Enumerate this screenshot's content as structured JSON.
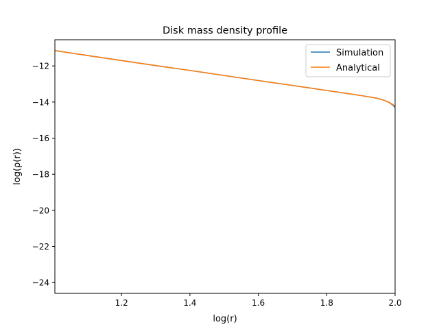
{
  "chart_data": {
    "type": "line",
    "title": "Disk mass density profile",
    "xlabel": "log(r)",
    "ylabel": "log(ρ(r))",
    "xlim": [
      1.005,
      2.0
    ],
    "ylim": [
      -24.6,
      -10.55
    ],
    "xticks": [
      1.2,
      1.4,
      1.6,
      1.8,
      2.0
    ],
    "xtick_labels": [
      "1.2",
      "1.4",
      "1.6",
      "1.8",
      "2.0"
    ],
    "yticks": [
      -12,
      -14,
      -16,
      -18,
      -20,
      -22,
      -24
    ],
    "ytick_labels": [
      "−12",
      "−14",
      "−16",
      "−18",
      "−20",
      "−22",
      "−24"
    ],
    "grid": false,
    "legend": "top-right",
    "series": [
      {
        "name": "Simulation",
        "color": "#1f77b4",
        "x": [
          1.005,
          1.1,
          1.2,
          1.3,
          1.4,
          1.5,
          1.6,
          1.7,
          1.8,
          1.9,
          1.95,
          1.97,
          1.985,
          1.995,
          2.0
        ],
        "y": [
          -11.15,
          -11.42,
          -11.7,
          -11.98,
          -12.25,
          -12.53,
          -12.81,
          -13.08,
          -13.36,
          -13.64,
          -13.8,
          -13.92,
          -14.05,
          -14.2,
          -14.3
        ]
      },
      {
        "name": "Analytical",
        "color": "#ff7f0e",
        "x": [
          1.005,
          1.1,
          1.2,
          1.3,
          1.4,
          1.5,
          1.6,
          1.7,
          1.8,
          1.9,
          1.95,
          1.97,
          1.985,
          1.995,
          2.0
        ],
        "y": [
          -11.15,
          -11.42,
          -11.7,
          -11.98,
          -12.25,
          -12.53,
          -12.81,
          -13.08,
          -13.36,
          -13.64,
          -13.8,
          -13.92,
          -14.04,
          -14.16,
          -14.24
        ]
      }
    ]
  }
}
